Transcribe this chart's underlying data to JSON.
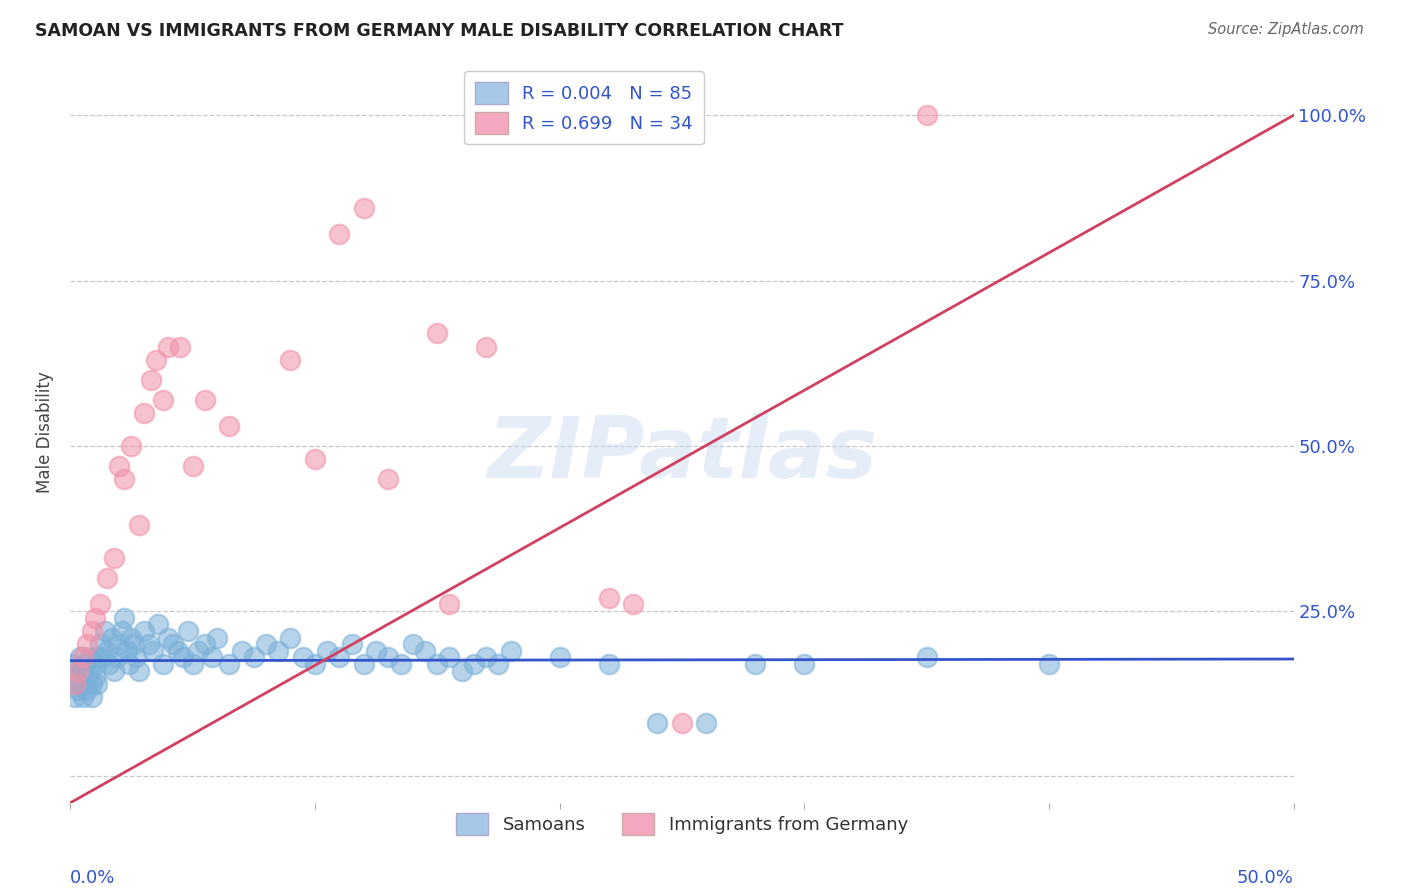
{
  "title": "SAMOAN VS IMMIGRANTS FROM GERMANY MALE DISABILITY CORRELATION CHART",
  "source": "Source: ZipAtlas.com",
  "ylabel": "Male Disability",
  "x_min": 0.0,
  "x_max": 0.5,
  "y_min": -0.04,
  "y_max": 1.08,
  "y_ticks": [
    0.0,
    0.25,
    0.5,
    0.75,
    1.0
  ],
  "y_tick_labels": [
    "",
    "25.0%",
    "50.0%",
    "75.0%",
    "100.0%"
  ],
  "x_tick_positions": [
    0.0,
    0.1,
    0.2,
    0.3,
    0.4,
    0.5
  ],
  "watermark_text": "ZIPatlas",
  "legend1_line1": "R = 0.004   N = 85",
  "legend1_line2": "R = 0.699   N = 34",
  "legend1_color1": "#a8c8e8",
  "legend1_color2": "#f4a8c0",
  "legend_text_color": "#3355cc",
  "bottom_legend_labels": [
    "Samoans",
    "Immigrants from Germany"
  ],
  "samoan_color": "#7ab0d8",
  "germany_color": "#f090a8",
  "samoan_line_color": "#3355cc",
  "germany_line_color": "#d04060",
  "background_color": "#ffffff",
  "grid_color": "#c8c8c8",
  "samoan_line_y_intercept": 0.175,
  "samoan_line_slope": 0.005,
  "germany_line_y_intercept": -0.04,
  "germany_line_slope": 2.08,
  "samoans_x": [
    0.001,
    0.002,
    0.002,
    0.003,
    0.003,
    0.004,
    0.004,
    0.005,
    0.005,
    0.006,
    0.006,
    0.007,
    0.007,
    0.008,
    0.008,
    0.009,
    0.009,
    0.01,
    0.01,
    0.011,
    0.011,
    0.012,
    0.013,
    0.014,
    0.015,
    0.016,
    0.017,
    0.018,
    0.019,
    0.02,
    0.021,
    0.022,
    0.023,
    0.024,
    0.025,
    0.026,
    0.027,
    0.028,
    0.03,
    0.032,
    0.034,
    0.036,
    0.038,
    0.04,
    0.042,
    0.044,
    0.046,
    0.048,
    0.05,
    0.052,
    0.055,
    0.058,
    0.06,
    0.065,
    0.07,
    0.075,
    0.08,
    0.085,
    0.09,
    0.095,
    0.1,
    0.105,
    0.11,
    0.115,
    0.12,
    0.125,
    0.13,
    0.135,
    0.14,
    0.145,
    0.15,
    0.155,
    0.16,
    0.165,
    0.17,
    0.175,
    0.18,
    0.2,
    0.22,
    0.24,
    0.26,
    0.28,
    0.3,
    0.35,
    0.4
  ],
  "samoans_y": [
    0.17,
    0.15,
    0.12,
    0.16,
    0.13,
    0.18,
    0.14,
    0.16,
    0.12,
    0.17,
    0.14,
    0.15,
    0.13,
    0.16,
    0.18,
    0.14,
    0.12,
    0.17,
    0.15,
    0.18,
    0.14,
    0.2,
    0.18,
    0.22,
    0.19,
    0.17,
    0.21,
    0.16,
    0.18,
    0.2,
    0.22,
    0.24,
    0.19,
    0.17,
    0.21,
    0.2,
    0.18,
    0.16,
    0.22,
    0.2,
    0.19,
    0.23,
    0.17,
    0.21,
    0.2,
    0.19,
    0.18,
    0.22,
    0.17,
    0.19,
    0.2,
    0.18,
    0.21,
    0.17,
    0.19,
    0.18,
    0.2,
    0.19,
    0.21,
    0.18,
    0.17,
    0.19,
    0.18,
    0.2,
    0.17,
    0.19,
    0.18,
    0.17,
    0.2,
    0.19,
    0.17,
    0.18,
    0.16,
    0.17,
    0.18,
    0.17,
    0.19,
    0.18,
    0.17,
    0.08,
    0.08,
    0.17,
    0.17,
    0.18,
    0.17
  ],
  "germany_x": [
    0.002,
    0.003,
    0.005,
    0.007,
    0.009,
    0.01,
    0.012,
    0.015,
    0.018,
    0.02,
    0.022,
    0.025,
    0.028,
    0.03,
    0.033,
    0.035,
    0.038,
    0.04,
    0.045,
    0.05,
    0.055,
    0.065,
    0.09,
    0.1,
    0.11,
    0.12,
    0.13,
    0.15,
    0.155,
    0.17,
    0.22,
    0.23,
    0.25,
    0.35
  ],
  "germany_y": [
    0.14,
    0.16,
    0.18,
    0.2,
    0.22,
    0.24,
    0.26,
    0.3,
    0.33,
    0.47,
    0.45,
    0.5,
    0.38,
    0.55,
    0.6,
    0.63,
    0.57,
    0.65,
    0.65,
    0.47,
    0.57,
    0.53,
    0.63,
    0.48,
    0.82,
    0.86,
    0.45,
    0.67,
    0.26,
    0.65,
    0.27,
    0.26,
    0.08,
    1.0
  ]
}
